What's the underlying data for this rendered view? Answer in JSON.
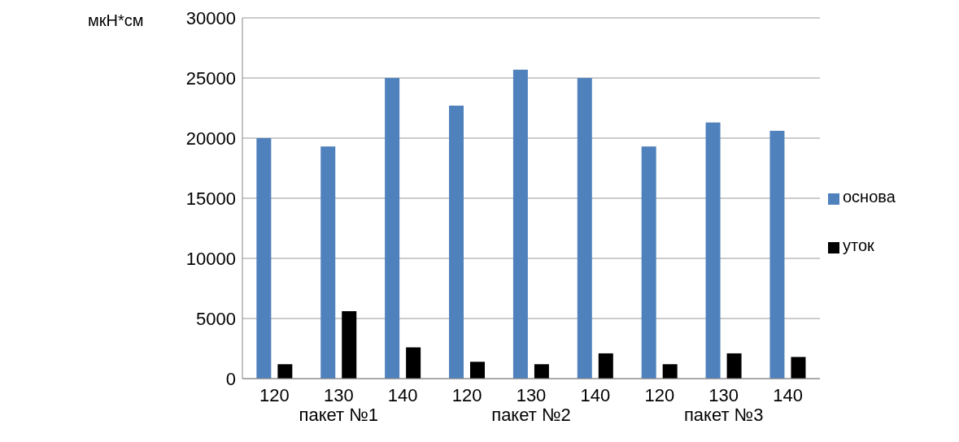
{
  "chart_data": {
    "type": "bar",
    "ylabel": "мкН*см",
    "categories": [
      "120",
      "130",
      "140",
      "120",
      "130",
      "140",
      "120",
      "130",
      "140"
    ],
    "annotations": [
      "пакет №1",
      "пакет №2",
      "пакет №3"
    ],
    "series": [
      {
        "name": "основа",
        "color": "#4f81bd",
        "values": [
          20000,
          19300,
          25000,
          22700,
          25700,
          25000,
          19300,
          21300,
          20600
        ]
      },
      {
        "name": "уток",
        "color": "#000000",
        "values": [
          1200,
          5600,
          2600,
          1400,
          1200,
          2100,
          1200,
          2100,
          1800
        ]
      }
    ],
    "ylim": [
      0,
      30000
    ],
    "yticks": [
      0,
      5000,
      10000,
      15000,
      20000,
      25000,
      30000
    ],
    "grid": "y",
    "legend": "right"
  }
}
